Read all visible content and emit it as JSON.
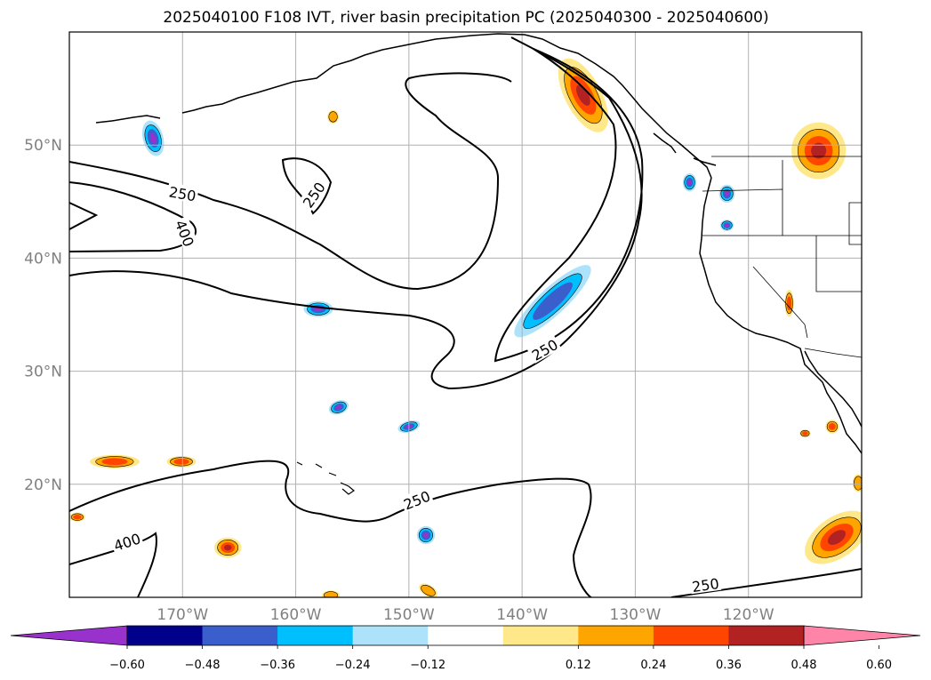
{
  "title": "2025040100 F108 IVT, river basin precipitation PC (2025040300 - 2025040600)",
  "chart_data": {
    "type": "heatmap",
    "title": "2025040100 F108 IVT, river basin precipitation PC (2025040300 - 2025040600)",
    "x_ticks": [
      {
        "value": -170,
        "label": "170°W"
      },
      {
        "value": -160,
        "label": "160°W"
      },
      {
        "value": -150,
        "label": "150°W"
      },
      {
        "value": -140,
        "label": "140°W"
      },
      {
        "value": -130,
        "label": "130°W"
      },
      {
        "value": -120,
        "label": "120°W"
      }
    ],
    "y_ticks": [
      {
        "value": 50,
        "label": "50°N"
      },
      {
        "value": 40,
        "label": "40°N"
      },
      {
        "value": 30,
        "label": "30°N"
      },
      {
        "value": 20,
        "label": "20°N"
      }
    ],
    "xlim": [
      -180,
      -110
    ],
    "ylim": [
      10,
      60
    ],
    "grid": true,
    "colorbar": {
      "orientation": "horizontal",
      "extend": "both",
      "ticks": [
        "−0.60",
        "−0.48",
        "−0.36",
        "−0.24",
        "−0.12",
        "0.12",
        "0.24",
        "0.36",
        "0.48",
        "0.60"
      ],
      "colors": [
        "#9932CC",
        "#00008B",
        "#3A5FCD",
        "#00BFFF",
        "#ADE3FA",
        "#FFFFFF",
        "#FFE88A",
        "#FFA500",
        "#FF4500",
        "#B22222",
        "#FF85A8"
      ]
    },
    "contour_labels": [
      {
        "text": "250",
        "lon": -170,
        "lat": 45.7,
        "angle": 10
      },
      {
        "text": "400",
        "lon": -169.8,
        "lat": 42.2,
        "angle": 68
      },
      {
        "text": "250",
        "lon": -158.4,
        "lat": 45.6,
        "angle": -55
      },
      {
        "text": "250",
        "lon": -138,
        "lat": 31.9,
        "angle": -30
      },
      {
        "text": "250",
        "lon": -149.3,
        "lat": 18.6,
        "angle": -22
      },
      {
        "text": "400",
        "lon": -174.9,
        "lat": 14.9,
        "angle": -18
      },
      {
        "text": "250",
        "lon": -123.8,
        "lat": 11.1,
        "angle": -8
      }
    ],
    "features": [
      {
        "kind": "neg",
        "lon": -172.6,
        "lat": 50.6,
        "rx": 0.9,
        "ry": 1.6,
        "r": -15,
        "level": 3
      },
      {
        "kind": "neg",
        "lon": -158,
        "lat": 35.5,
        "rx": 1.3,
        "ry": 0.7,
        "r": 0,
        "level": 3
      },
      {
        "kind": "neg",
        "lon": -156.2,
        "lat": 26.8,
        "rx": 0.9,
        "ry": 0.6,
        "r": -20,
        "level": 3
      },
      {
        "kind": "neg",
        "lon": -150,
        "lat": 25.1,
        "rx": 1.0,
        "ry": 0.5,
        "r": -15,
        "level": 3
      },
      {
        "kind": "neg",
        "lon": -148.5,
        "lat": 15.5,
        "rx": 0.8,
        "ry": 0.8,
        "r": 30,
        "level": 4
      },
      {
        "kind": "neg",
        "lon": -137.3,
        "lat": 36.2,
        "rx": 1.2,
        "ry": 4.5,
        "r": 47,
        "level": 2
      },
      {
        "kind": "neg",
        "lon": -125.2,
        "lat": 46.7,
        "rx": 0.6,
        "ry": 0.8,
        "r": 0,
        "level": 3
      },
      {
        "kind": "neg",
        "lon": -121.9,
        "lat": 45.7,
        "rx": 0.7,
        "ry": 0.8,
        "r": 0,
        "level": 3
      },
      {
        "kind": "neg",
        "lon": -121.9,
        "lat": 42.9,
        "rx": 0.6,
        "ry": 0.5,
        "r": 0,
        "level": 3
      },
      {
        "kind": "pos",
        "lon": -134.6,
        "lat": 54.4,
        "rx": 1.6,
        "ry": 3.6,
        "r": -28,
        "level": 3
      },
      {
        "kind": "pos",
        "lon": -156.7,
        "lat": 52.5,
        "rx": 0.5,
        "ry": 0.6,
        "r": 0,
        "level": 1
      },
      {
        "kind": "pos",
        "lon": -113.8,
        "lat": 49.5,
        "rx": 2.4,
        "ry": 2.5,
        "r": 0,
        "level": 3
      },
      {
        "kind": "pos",
        "lon": -116.4,
        "lat": 36.0,
        "rx": 0.4,
        "ry": 1.2,
        "r": 0,
        "level": 2
      },
      {
        "kind": "pos",
        "lon": -176,
        "lat": 22.0,
        "rx": 2.2,
        "ry": 0.6,
        "r": 0,
        "level": 2
      },
      {
        "kind": "pos",
        "lon": -170.1,
        "lat": 22.0,
        "rx": 1.3,
        "ry": 0.5,
        "r": 0,
        "level": 2
      },
      {
        "kind": "pos",
        "lon": -179.3,
        "lat": 17.1,
        "rx": 0.7,
        "ry": 0.4,
        "r": 0,
        "level": 2
      },
      {
        "kind": "pos",
        "lon": -166,
        "lat": 14.4,
        "rx": 1.2,
        "ry": 0.9,
        "r": 0,
        "level": 3
      },
      {
        "kind": "pos",
        "lon": -156.9,
        "lat": 10.2,
        "rx": 0.8,
        "ry": 0.4,
        "r": 0,
        "level": 1
      },
      {
        "kind": "pos",
        "lon": -148.3,
        "lat": 10.6,
        "rx": 0.9,
        "ry": 0.5,
        "r": 30,
        "level": 1
      },
      {
        "kind": "pos",
        "lon": -112.2,
        "lat": 15.3,
        "rx": 3.2,
        "ry": 1.8,
        "r": -35,
        "level": 3
      },
      {
        "kind": "pos",
        "lon": -112.6,
        "lat": 25.1,
        "rx": 0.6,
        "ry": 0.6,
        "r": 0,
        "level": 2
      },
      {
        "kind": "pos",
        "lon": -110.3,
        "lat": 20.1,
        "rx": 0.5,
        "ry": 0.8,
        "r": 0,
        "level": 1
      },
      {
        "kind": "pos",
        "lon": -115,
        "lat": 24.5,
        "rx": 0.5,
        "ry": 0.35,
        "r": 0,
        "level": 2
      }
    ]
  }
}
